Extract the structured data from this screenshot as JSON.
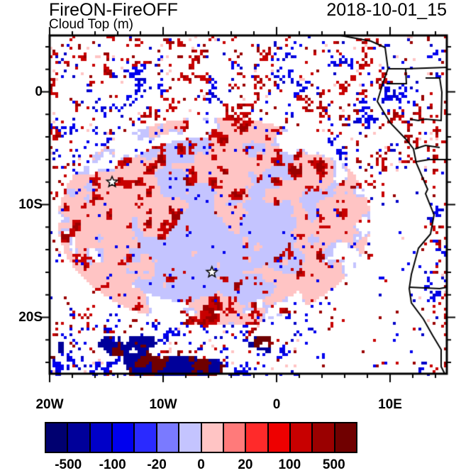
{
  "title": "FireON-FireOFF",
  "subtitle": "Cloud Top (m)",
  "time": "2018-10-01_15",
  "map": {
    "lon_range": [
      -20,
      15
    ],
    "lat_range": [
      -25,
      5
    ],
    "lon_labels": [
      {
        "lon": -20,
        "text": "20W"
      },
      {
        "lon": -10,
        "text": "10W"
      },
      {
        "lon": 0,
        "text": "0"
      },
      {
        "lon": 10,
        "text": "10E"
      }
    ],
    "lat_labels": [
      {
        "lat": 0,
        "text": "0"
      },
      {
        "lat": -10,
        "text": "10S"
      },
      {
        "lat": -20,
        "text": "20S"
      }
    ],
    "markers": [
      {
        "name": "star",
        "lon": -14.5,
        "lat": -8
      },
      {
        "name": "star",
        "lon": -5.7,
        "lat": -16
      }
    ]
  },
  "colorbar": {
    "colors": [
      "#000070",
      "#00009a",
      "#0000c8",
      "#0000ee",
      "#2a2aff",
      "#7a7aff",
      "#c4c4ff",
      "#ffc4c4",
      "#ff7a7a",
      "#ff2a2a",
      "#ee0000",
      "#c80000",
      "#9a0000",
      "#700000"
    ],
    "labels": [
      {
        "i": 1,
        "text": "-500"
      },
      {
        "i": 3,
        "text": "-100"
      },
      {
        "i": 5,
        "text": "-20"
      },
      {
        "i": 7,
        "text": "0"
      },
      {
        "i": 9,
        "text": "20"
      },
      {
        "i": 11,
        "text": "100"
      },
      {
        "i": 13,
        "text": "500"
      }
    ]
  }
}
